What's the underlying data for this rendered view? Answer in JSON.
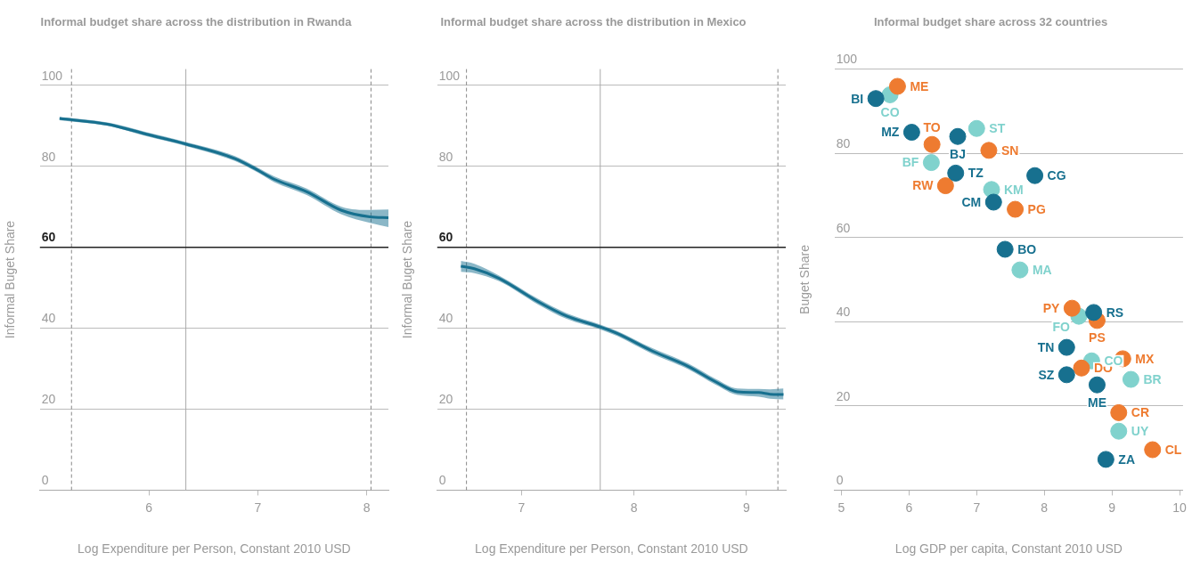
{
  "chart_data": [
    {
      "type": "line",
      "title": "Informal budget share across the distribution in Rwanda",
      "xlabel": "Log Expenditure per Person, Constant 2010 USD",
      "ylabel": "Informal Buget Share",
      "series": [
        {
          "color": "#17708f",
          "x": [
            5.18,
            5.62,
            5.98,
            6.34,
            6.79,
            6.99,
            7.15,
            7.45,
            7.77,
            8.03,
            8.2
          ],
          "values": [
            91.8,
            90.4,
            87.9,
            85.5,
            81.9,
            79.2,
            76.8,
            73.7,
            69.1,
            67.5,
            67.3
          ],
          "lower": [
            91.4,
            90.0,
            87.4,
            85.0,
            81.3,
            78.6,
            76.1,
            72.9,
            68.1,
            66.0,
            65.0
          ],
          "upper": [
            92.2,
            90.8,
            88.4,
            86.0,
            82.5,
            79.8,
            77.5,
            74.5,
            70.0,
            69.2,
            69.3
          ]
        }
      ],
      "xlim": [
        5.0,
        8.2
      ],
      "xticks": [
        6,
        7,
        8
      ],
      "ylim": [
        0,
        104
      ],
      "yticks": [
        0,
        20,
        40,
        60,
        80,
        100
      ],
      "grid": "y",
      "ref_lines": [
        {
          "axis": "x",
          "value": 5.29,
          "line_style": "dashed",
          "color": "#888888"
        },
        {
          "axis": "x",
          "value": 6.34,
          "line_style": "solid",
          "color": "#aaaaaa"
        },
        {
          "axis": "x",
          "value": 8.04,
          "line_style": "dashed",
          "color": "#888888"
        },
        {
          "axis": "y",
          "value": 60,
          "line_style": "solid",
          "color": "#222222"
        }
      ]
    },
    {
      "type": "line",
      "title": "Informal budget share across the distribution in Mexico",
      "xlabel": "Log Expenditure per Person, Constant 2010 USD",
      "ylabel": "Informal Buget Share",
      "series": [
        {
          "color": "#17708f",
          "x": [
            6.46,
            6.58,
            6.8,
            7.15,
            7.4,
            7.7,
            7.85,
            8.16,
            8.48,
            8.73,
            8.92,
            9.11,
            9.21,
            9.33
          ],
          "values": [
            55.3,
            54.7,
            52.3,
            46.5,
            43.0,
            40.3,
            38.7,
            34.4,
            30.6,
            26.7,
            24.3,
            24.1,
            23.7,
            23.6
          ],
          "lower": [
            53.9,
            53.6,
            51.6,
            45.8,
            42.3,
            39.7,
            38.1,
            33.7,
            29.9,
            26.0,
            23.5,
            23.1,
            22.6,
            22.4
          ],
          "upper": [
            56.6,
            55.9,
            53.0,
            47.2,
            43.7,
            40.9,
            39.3,
            35.1,
            31.3,
            27.4,
            25.1,
            25.0,
            24.9,
            25.1
          ]
        }
      ],
      "xlim": [
        6.25,
        9.35
      ],
      "xticks": [
        7,
        8,
        9
      ],
      "ylim": [
        0,
        104
      ],
      "yticks": [
        0,
        20,
        40,
        60,
        80,
        100
      ],
      "grid": "y",
      "ref_lines": [
        {
          "axis": "x",
          "value": 6.51,
          "line_style": "dashed",
          "color": "#888888"
        },
        {
          "axis": "x",
          "value": 7.7,
          "line_style": "solid",
          "color": "#aaaaaa"
        },
        {
          "axis": "x",
          "value": 9.28,
          "line_style": "dashed",
          "color": "#888888"
        },
        {
          "axis": "y",
          "value": 60,
          "line_style": "solid",
          "color": "#222222"
        }
      ]
    },
    {
      "type": "scatter",
      "title": "Informal budget share across 32 countries",
      "xlabel": "Log GDP per capita, Constant 2010 USD",
      "ylabel": "Buget Share",
      "marker": "circle",
      "series": [
        {
          "color": "#17708f",
          "x": [
            5.51,
            6.04,
            6.72,
            6.69,
            7.86,
            7.25,
            7.42,
            8.73,
            8.33,
            8.33,
            8.78,
            8.91
          ],
          "values": [
            93.0,
            85.0,
            84.0,
            75.3,
            74.7,
            68.4,
            57.2,
            42.2,
            33.9,
            27.4,
            25.0,
            7.3
          ]
        },
        {
          "color": "#ee7b30",
          "x": [
            5.83,
            6.34,
            7.18,
            6.54,
            7.57,
            8.41,
            8.78,
            8.55,
            9.16,
            9.1,
            9.6
          ],
          "values": [
            95.9,
            82.1,
            80.7,
            72.3,
            66.7,
            43.2,
            40.3,
            29.0,
            31.2,
            18.4,
            9.6
          ]
        },
        {
          "color": "#80d2cd",
          "x": [
            5.72,
            7.0,
            6.33,
            7.22,
            7.64,
            8.51,
            8.7,
            9.28,
            9.1
          ],
          "values": [
            93.9,
            85.9,
            77.8,
            71.4,
            52.3,
            41.3,
            30.7,
            26.3,
            14.0
          ]
        }
      ],
      "annotations": [
        {
          "text": "BI",
          "x": 5.51,
          "y": 93.0
        },
        {
          "text": "MZ",
          "x": 6.04,
          "y": 85.0
        },
        {
          "text": "BJ",
          "x": 6.72,
          "y": 84.0
        },
        {
          "text": "TZ",
          "x": 6.69,
          "y": 75.3
        },
        {
          "text": "CG",
          "x": 7.86,
          "y": 74.7
        },
        {
          "text": "CM",
          "x": 7.25,
          "y": 68.4
        },
        {
          "text": "BO",
          "x": 7.42,
          "y": 57.2
        },
        {
          "text": "RS",
          "x": 8.73,
          "y": 42.2
        },
        {
          "text": "TN",
          "x": 8.33,
          "y": 33.9
        },
        {
          "text": "SZ",
          "x": 8.33,
          "y": 27.4
        },
        {
          "text": "ME",
          "x": 8.78,
          "y": 25.0
        },
        {
          "text": "ZA",
          "x": 8.91,
          "y": 7.3
        },
        {
          "text": "ME",
          "x": 5.83,
          "y": 95.9
        },
        {
          "text": "TO",
          "x": 6.34,
          "y": 82.1
        },
        {
          "text": "SN",
          "x": 7.18,
          "y": 80.7
        },
        {
          "text": "RW",
          "x": 6.54,
          "y": 72.3
        },
        {
          "text": "PG",
          "x": 7.57,
          "y": 66.7
        },
        {
          "text": "PY",
          "x": 8.41,
          "y": 43.2
        },
        {
          "text": "PS",
          "x": 8.78,
          "y": 40.3
        },
        {
          "text": "DO",
          "x": 8.55,
          "y": 29.0
        },
        {
          "text": "MX",
          "x": 9.16,
          "y": 31.2
        },
        {
          "text": "CR",
          "x": 9.1,
          "y": 18.4
        },
        {
          "text": "CL",
          "x": 9.6,
          "y": 9.6
        },
        {
          "text": "CO",
          "x": 5.72,
          "y": 93.9
        },
        {
          "text": "ST",
          "x": 7.0,
          "y": 85.9
        },
        {
          "text": "BF",
          "x": 6.33,
          "y": 77.8
        },
        {
          "text": "KM",
          "x": 7.22,
          "y": 71.4
        },
        {
          "text": "MA",
          "x": 7.64,
          "y": 52.3
        },
        {
          "text": "FO",
          "x": 8.51,
          "y": 41.3
        },
        {
          "text": "CO",
          "x": 8.7,
          "y": 30.7
        },
        {
          "text": "BR",
          "x": 9.28,
          "y": 26.3
        },
        {
          "text": "UY",
          "x": 9.1,
          "y": 14.0
        }
      ],
      "xlim": [
        4.9,
        10.05
      ],
      "xticks": [
        5,
        6,
        7,
        8,
        9,
        10
      ],
      "ylim": [
        0,
        100
      ],
      "yticks": [
        0,
        20,
        40,
        60,
        80,
        100
      ],
      "grid": "y"
    }
  ]
}
